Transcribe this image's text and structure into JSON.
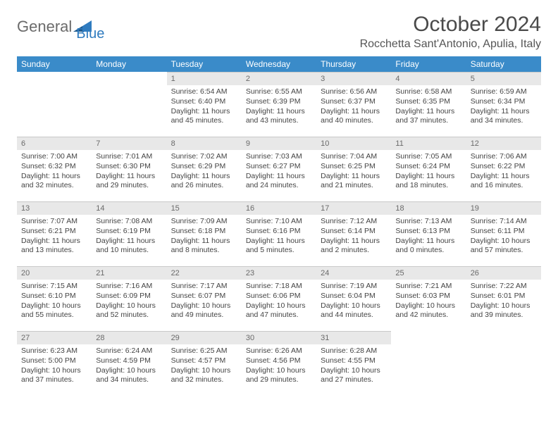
{
  "brand": {
    "name_part1": "General",
    "name_part2": "Blue",
    "gray_color": "#6b6b6b",
    "blue_color": "#2f7bbf"
  },
  "title": "October 2024",
  "location": "Rocchetta Sant'Antonio, Apulia, Italy",
  "header_bg": "#3a8bc9",
  "header_fg": "#ffffff",
  "daynum_bg": "#e8e8e8",
  "day_headers": [
    "Sunday",
    "Monday",
    "Tuesday",
    "Wednesday",
    "Thursday",
    "Friday",
    "Saturday"
  ],
  "weeks": [
    [
      {
        "empty": true
      },
      {
        "empty": true
      },
      {
        "num": "1",
        "sunrise": "Sunrise: 6:54 AM",
        "sunset": "Sunset: 6:40 PM",
        "daylight": "Daylight: 11 hours and 45 minutes."
      },
      {
        "num": "2",
        "sunrise": "Sunrise: 6:55 AM",
        "sunset": "Sunset: 6:39 PM",
        "daylight": "Daylight: 11 hours and 43 minutes."
      },
      {
        "num": "3",
        "sunrise": "Sunrise: 6:56 AM",
        "sunset": "Sunset: 6:37 PM",
        "daylight": "Daylight: 11 hours and 40 minutes."
      },
      {
        "num": "4",
        "sunrise": "Sunrise: 6:58 AM",
        "sunset": "Sunset: 6:35 PM",
        "daylight": "Daylight: 11 hours and 37 minutes."
      },
      {
        "num": "5",
        "sunrise": "Sunrise: 6:59 AM",
        "sunset": "Sunset: 6:34 PM",
        "daylight": "Daylight: 11 hours and 34 minutes."
      }
    ],
    [
      {
        "num": "6",
        "sunrise": "Sunrise: 7:00 AM",
        "sunset": "Sunset: 6:32 PM",
        "daylight": "Daylight: 11 hours and 32 minutes."
      },
      {
        "num": "7",
        "sunrise": "Sunrise: 7:01 AM",
        "sunset": "Sunset: 6:30 PM",
        "daylight": "Daylight: 11 hours and 29 minutes."
      },
      {
        "num": "8",
        "sunrise": "Sunrise: 7:02 AM",
        "sunset": "Sunset: 6:29 PM",
        "daylight": "Daylight: 11 hours and 26 minutes."
      },
      {
        "num": "9",
        "sunrise": "Sunrise: 7:03 AM",
        "sunset": "Sunset: 6:27 PM",
        "daylight": "Daylight: 11 hours and 24 minutes."
      },
      {
        "num": "10",
        "sunrise": "Sunrise: 7:04 AM",
        "sunset": "Sunset: 6:25 PM",
        "daylight": "Daylight: 11 hours and 21 minutes."
      },
      {
        "num": "11",
        "sunrise": "Sunrise: 7:05 AM",
        "sunset": "Sunset: 6:24 PM",
        "daylight": "Daylight: 11 hours and 18 minutes."
      },
      {
        "num": "12",
        "sunrise": "Sunrise: 7:06 AM",
        "sunset": "Sunset: 6:22 PM",
        "daylight": "Daylight: 11 hours and 16 minutes."
      }
    ],
    [
      {
        "num": "13",
        "sunrise": "Sunrise: 7:07 AM",
        "sunset": "Sunset: 6:21 PM",
        "daylight": "Daylight: 11 hours and 13 minutes."
      },
      {
        "num": "14",
        "sunrise": "Sunrise: 7:08 AM",
        "sunset": "Sunset: 6:19 PM",
        "daylight": "Daylight: 11 hours and 10 minutes."
      },
      {
        "num": "15",
        "sunrise": "Sunrise: 7:09 AM",
        "sunset": "Sunset: 6:18 PM",
        "daylight": "Daylight: 11 hours and 8 minutes."
      },
      {
        "num": "16",
        "sunrise": "Sunrise: 7:10 AM",
        "sunset": "Sunset: 6:16 PM",
        "daylight": "Daylight: 11 hours and 5 minutes."
      },
      {
        "num": "17",
        "sunrise": "Sunrise: 7:12 AM",
        "sunset": "Sunset: 6:14 PM",
        "daylight": "Daylight: 11 hours and 2 minutes."
      },
      {
        "num": "18",
        "sunrise": "Sunrise: 7:13 AM",
        "sunset": "Sunset: 6:13 PM",
        "daylight": "Daylight: 11 hours and 0 minutes."
      },
      {
        "num": "19",
        "sunrise": "Sunrise: 7:14 AM",
        "sunset": "Sunset: 6:11 PM",
        "daylight": "Daylight: 10 hours and 57 minutes."
      }
    ],
    [
      {
        "num": "20",
        "sunrise": "Sunrise: 7:15 AM",
        "sunset": "Sunset: 6:10 PM",
        "daylight": "Daylight: 10 hours and 55 minutes."
      },
      {
        "num": "21",
        "sunrise": "Sunrise: 7:16 AM",
        "sunset": "Sunset: 6:09 PM",
        "daylight": "Daylight: 10 hours and 52 minutes."
      },
      {
        "num": "22",
        "sunrise": "Sunrise: 7:17 AM",
        "sunset": "Sunset: 6:07 PM",
        "daylight": "Daylight: 10 hours and 49 minutes."
      },
      {
        "num": "23",
        "sunrise": "Sunrise: 7:18 AM",
        "sunset": "Sunset: 6:06 PM",
        "daylight": "Daylight: 10 hours and 47 minutes."
      },
      {
        "num": "24",
        "sunrise": "Sunrise: 7:19 AM",
        "sunset": "Sunset: 6:04 PM",
        "daylight": "Daylight: 10 hours and 44 minutes."
      },
      {
        "num": "25",
        "sunrise": "Sunrise: 7:21 AM",
        "sunset": "Sunset: 6:03 PM",
        "daylight": "Daylight: 10 hours and 42 minutes."
      },
      {
        "num": "26",
        "sunrise": "Sunrise: 7:22 AM",
        "sunset": "Sunset: 6:01 PM",
        "daylight": "Daylight: 10 hours and 39 minutes."
      }
    ],
    [
      {
        "num": "27",
        "sunrise": "Sunrise: 6:23 AM",
        "sunset": "Sunset: 5:00 PM",
        "daylight": "Daylight: 10 hours and 37 minutes."
      },
      {
        "num": "28",
        "sunrise": "Sunrise: 6:24 AM",
        "sunset": "Sunset: 4:59 PM",
        "daylight": "Daylight: 10 hours and 34 minutes."
      },
      {
        "num": "29",
        "sunrise": "Sunrise: 6:25 AM",
        "sunset": "Sunset: 4:57 PM",
        "daylight": "Daylight: 10 hours and 32 minutes."
      },
      {
        "num": "30",
        "sunrise": "Sunrise: 6:26 AM",
        "sunset": "Sunset: 4:56 PM",
        "daylight": "Daylight: 10 hours and 29 minutes."
      },
      {
        "num": "31",
        "sunrise": "Sunrise: 6:28 AM",
        "sunset": "Sunset: 4:55 PM",
        "daylight": "Daylight: 10 hours and 27 minutes."
      },
      {
        "empty": true
      },
      {
        "empty": true
      }
    ]
  ]
}
